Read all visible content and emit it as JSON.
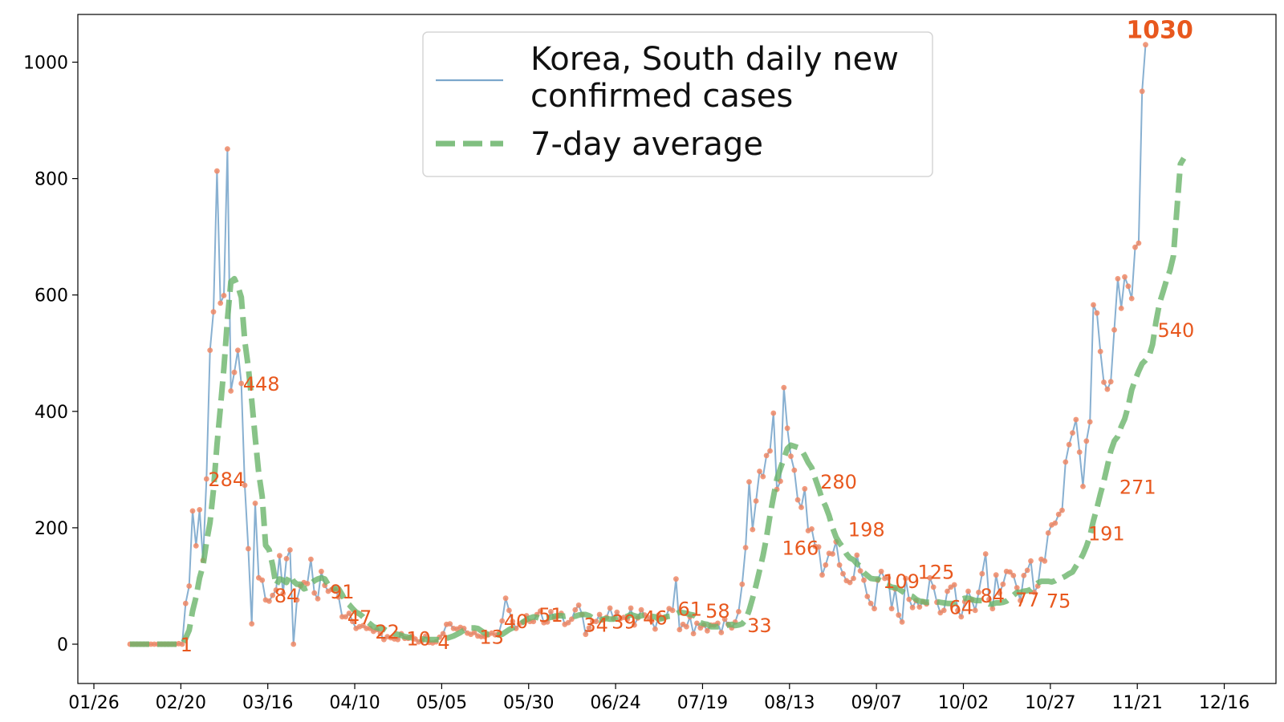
{
  "chart_data": {
    "type": "line",
    "title": "",
    "xlabel": "",
    "ylabel": "",
    "ylim": [
      -65,
      1080
    ],
    "x_ticks": [
      "01/26",
      "02/20",
      "03/16",
      "04/10",
      "05/05",
      "05/30",
      "06/24",
      "07/19",
      "08/13",
      "09/07",
      "10/02",
      "10/27",
      "11/21",
      "12/16"
    ],
    "y_ticks": [
      "0",
      "200",
      "400",
      "600",
      "800",
      "1000"
    ],
    "legend": {
      "position": "top-center",
      "entries": [
        {
          "label": "Korea, South daily new\nconfirmed cases",
          "style": "line",
          "color": "#7ba7cc"
        },
        {
          "label": "7-day average",
          "style": "dashed",
          "color": "#6ab46a"
        }
      ]
    },
    "colors": {
      "daily_line": "#7ba7cc",
      "markers": "#ee8866",
      "average": "#6ab46a",
      "annotation": "#e8581e"
    },
    "x_start": "2020-02-04",
    "daily": [
      0,
      0,
      0,
      0,
      0,
      0,
      0,
      0,
      0,
      0,
      0,
      0,
      0,
      0,
      1,
      0,
      70,
      100,
      229,
      169,
      231,
      144,
      284,
      505,
      571,
      813,
      586,
      599,
      851,
      435,
      467,
      505,
      448,
      273,
      164,
      35,
      242,
      114,
      110,
      76,
      74,
      84,
      93,
      152,
      87,
      147,
      162,
      0,
      76,
      100,
      106,
      104,
      146,
      88,
      78,
      125,
      101,
      91,
      94,
      94,
      81,
      47,
      47,
      53,
      39,
      27,
      30,
      32,
      27,
      27,
      22,
      25,
      18,
      8,
      13,
      11,
      9,
      8,
      18,
      10,
      10,
      14,
      9,
      4,
      6,
      14,
      3,
      2,
      4,
      12,
      18,
      34,
      35,
      27,
      26,
      29,
      27,
      19,
      17,
      20,
      14,
      13,
      13,
      16,
      19,
      16,
      18,
      40,
      79,
      58,
      39,
      27,
      35,
      38,
      49,
      39,
      39,
      51,
      57,
      37,
      38,
      56,
      45,
      49,
      53,
      34,
      37,
      43,
      59,
      67,
      51,
      17,
      28,
      39,
      39,
      51,
      42,
      46,
      62,
      44,
      55,
      44,
      46,
      43,
      62,
      33,
      45,
      59,
      50,
      46,
      40,
      26,
      50,
      45,
      46,
      61,
      58,
      112,
      25,
      34,
      30,
      47,
      18,
      36,
      28,
      33,
      23,
      33,
      33,
      36,
      20,
      43,
      34,
      28,
      38,
      56,
      103,
      166,
      279,
      197,
      246,
      297,
      288,
      324,
      332,
      397,
      266,
      280,
      441,
      371,
      323,
      299,
      248,
      235,
      267,
      195,
      198,
      168,
      167,
      119,
      136,
      156,
      155,
      176,
      136,
      121,
      109,
      106,
      113,
      153,
      126,
      110,
      82,
      70,
      61,
      110,
      125,
      113,
      114,
      61,
      95,
      50,
      38,
      113,
      77,
      63,
      75,
      64,
      73,
      69,
      114,
      98,
      72,
      54,
      58,
      91,
      98,
      102,
      58,
      47,
      73,
      91,
      76,
      58,
      89,
      121,
      155,
      77,
      61,
      119,
      88,
      103,
      125,
      124,
      118,
      97,
      75,
      118,
      127,
      143,
      89,
      100,
      146,
      143,
      191,
      205,
      208,
      223,
      230,
      313,
      343,
      363,
      386,
      330,
      271,
      349,
      382,
      583,
      569,
      503,
      450,
      438,
      451,
      540,
      628,
      577,
      631,
      615,
      594,
      682,
      689,
      950,
      1030
    ],
    "average": [
      0,
      0,
      0,
      0,
      0,
      0,
      0,
      0,
      0,
      0,
      0,
      0,
      0,
      0,
      0,
      0,
      10,
      24,
      57,
      81,
      114,
      135,
      175,
      209,
      265,
      343,
      407,
      474,
      558,
      623,
      628,
      615,
      596,
      521,
      476,
      419,
      355,
      294,
      254,
      170,
      162,
      136,
      101,
      112,
      110,
      106,
      119,
      108,
      103,
      103,
      95,
      97,
      104,
      109,
      112,
      114,
      112,
      102,
      92,
      98,
      95,
      85,
      73,
      68,
      61,
      55,
      52,
      47,
      40,
      35,
      30,
      28,
      27,
      26,
      22,
      21,
      18,
      17,
      15,
      13,
      12,
      11,
      12,
      10,
      9,
      8,
      8,
      8,
      8,
      7,
      8,
      10,
      12,
      14,
      17,
      20,
      24,
      27,
      28,
      28,
      27,
      23,
      19,
      17,
      17,
      16,
      16,
      17,
      21,
      25,
      28,
      31,
      34,
      38,
      42,
      45,
      47,
      46,
      44,
      44,
      45,
      46,
      48,
      49,
      49,
      48,
      49,
      49,
      48,
      50,
      51,
      51,
      49,
      45,
      42,
      41,
      43,
      44,
      43,
      43,
      45,
      46,
      46,
      48,
      51,
      49,
      47,
      49,
      50,
      48,
      48,
      47,
      43,
      44,
      47,
      48,
      49,
      52,
      55,
      54,
      53,
      51,
      50,
      46,
      37,
      35,
      34,
      30,
      30,
      30,
      31,
      31,
      33,
      34,
      32,
      33,
      35,
      42,
      58,
      79,
      101,
      127,
      152,
      183,
      221,
      253,
      284,
      302,
      319,
      336,
      342,
      340,
      338,
      334,
      324,
      312,
      303,
      285,
      268,
      249,
      237,
      221,
      200,
      184,
      174,
      166,
      155,
      148,
      145,
      138,
      134,
      123,
      118,
      113,
      112,
      112,
      108,
      103,
      101,
      98,
      97,
      95,
      91,
      87,
      84,
      82,
      77,
      74,
      73,
      72,
      72,
      73,
      73,
      72,
      71,
      70,
      70,
      70,
      74,
      77,
      79,
      79,
      77,
      75,
      75,
      75,
      72,
      69,
      69,
      71,
      71,
      72,
      74,
      79,
      84,
      89,
      89,
      91,
      92,
      94,
      100,
      105,
      108,
      108,
      108,
      107,
      109,
      113,
      114,
      117,
      121,
      124,
      134,
      143,
      154,
      168,
      186,
      212,
      234,
      258,
      280,
      306,
      332,
      349,
      357,
      374,
      387,
      409,
      437,
      454,
      469,
      482,
      488,
      495,
      515,
      554,
      586,
      605,
      625,
      642,
      667,
      746,
      825,
      835
    ]
  },
  "annotations": [
    {
      "text": "1",
      "x_index": 14,
      "y": 0
    },
    {
      "text": "284",
      "x_index": 22,
      "y": 284
    },
    {
      "text": "448",
      "x_index": 32,
      "y": 448
    },
    {
      "text": "84",
      "x_index": 41,
      "y": 84
    },
    {
      "text": "91",
      "x_index": 57,
      "y": 91
    },
    {
      "text": "47",
      "x_index": 62,
      "y": 47
    },
    {
      "text": "22",
      "x_index": 70,
      "y": 22
    },
    {
      "text": "10",
      "x_index": 79,
      "y": 10
    },
    {
      "text": "4",
      "x_index": 88,
      "y": 4
    },
    {
      "text": "13",
      "x_index": 100,
      "y": 13
    },
    {
      "text": "40",
      "x_index": 107,
      "y": 40
    },
    {
      "text": "51",
      "x_index": 117,
      "y": 51
    },
    {
      "text": "34",
      "x_index": 130,
      "y": 34
    },
    {
      "text": "39",
      "x_index": 138,
      "y": 39
    },
    {
      "text": "46",
      "x_index": 147,
      "y": 46
    },
    {
      "text": "61",
      "x_index": 157,
      "y": 61
    },
    {
      "text": "58",
      "x_index": 165,
      "y": 58
    },
    {
      "text": "33",
      "x_index": 177,
      "y": 33
    },
    {
      "text": "166",
      "x_index": 187,
      "y": 166
    },
    {
      "text": "280",
      "x_index": 198,
      "y": 280
    },
    {
      "text": "198",
      "x_index": 206,
      "y": 198
    },
    {
      "text": "109",
      "x_index": 216,
      "y": 109
    },
    {
      "text": "125",
      "x_index": 226,
      "y": 125
    },
    {
      "text": "64",
      "x_index": 235,
      "y": 64
    },
    {
      "text": "84",
      "x_index": 244,
      "y": 84
    },
    {
      "text": "77",
      "x_index": 254,
      "y": 77
    },
    {
      "text": "75",
      "x_index": 263,
      "y": 75
    },
    {
      "text": "191",
      "x_index": 275,
      "y": 191
    },
    {
      "text": "271",
      "x_index": 284,
      "y": 271
    },
    {
      "text": "540",
      "x_index": 295,
      "y": 540
    },
    {
      "text": "1030",
      "x_index": 305,
      "y": 1030,
      "emphasis": true
    }
  ]
}
